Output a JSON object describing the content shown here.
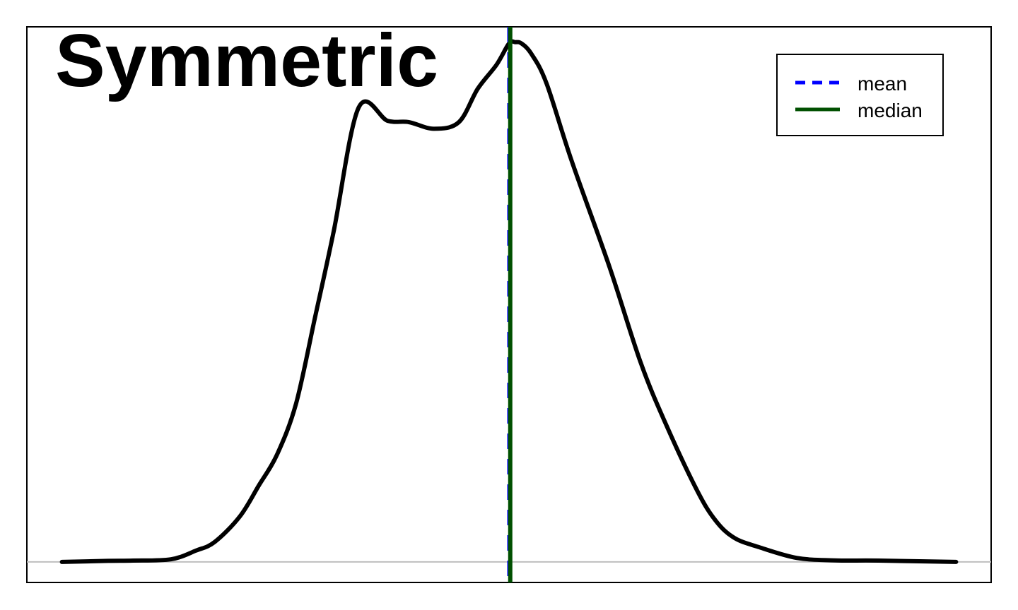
{
  "chart_data": {
    "type": "line",
    "title": "Symmetric",
    "xlabel": "",
    "ylabel": "",
    "axes_visible": false,
    "grid": false,
    "baseline": 0,
    "baseline_color": "#bebebe",
    "xlim": [
      -3.85,
      3.85
    ],
    "ylim": [
      -0.0154,
      0.4015
    ],
    "density": {
      "name": "",
      "color": "#000000",
      "x": [
        -3.57,
        -3.2,
        -3.0,
        -2.7,
        -2.5,
        -2.35,
        -2.15,
        -2.0,
        -1.85,
        -1.7,
        -1.55,
        -1.4,
        -1.2,
        -0.97,
        -0.8,
        -0.6,
        -0.4,
        -0.25,
        -0.1,
        0.0,
        0.05,
        0.1,
        0.18,
        0.3,
        0.5,
        0.8,
        1.05,
        1.25,
        1.5,
        1.65,
        1.8,
        2.0,
        2.3,
        2.6,
        2.95,
        3.57
      ],
      "y": [
        0.0,
        0.0008,
        0.001,
        0.002,
        0.0085,
        0.015,
        0.034,
        0.057,
        0.081,
        0.119,
        0.183,
        0.248,
        0.341,
        0.331,
        0.33,
        0.325,
        0.33,
        0.355,
        0.373,
        0.389,
        0.39,
        0.389,
        0.381,
        0.359,
        0.301,
        0.222,
        0.15,
        0.104,
        0.054,
        0.031,
        0.018,
        0.011,
        0.003,
        0.0012,
        0.001,
        0.0
      ]
    },
    "mean": 0.0,
    "median": 0.01,
    "legend": {
      "placement": "top-right",
      "entries": [
        {
          "label": "mean",
          "color": "#0000ff",
          "style": "dashed"
        },
        {
          "label": "median",
          "color": "#005000",
          "style": "solid"
        }
      ]
    }
  }
}
